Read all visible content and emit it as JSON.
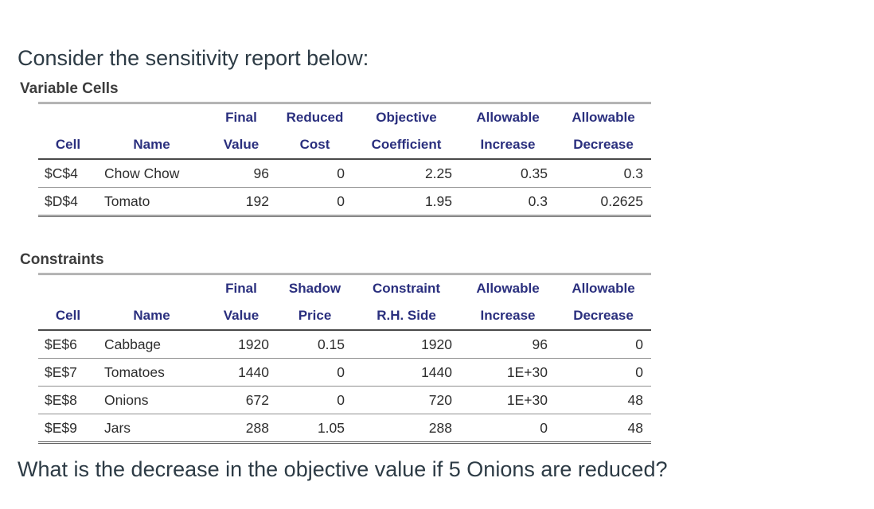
{
  "prompt": {
    "intro": "Consider the sensitivity report below:",
    "question": "What is the decrease in the objective value if 5 Onions are reduced?"
  },
  "colors": {
    "table_header_text": "#2a2f7e",
    "table_body_text": "#2e2e2e",
    "prompt_text": "#2d3b45"
  },
  "variable_cells": {
    "label": "Variable Cells",
    "header_top": {
      "final": "Final",
      "reduced": "Reduced",
      "objective": "Objective",
      "allowable1": "Allowable",
      "allowable2": "Allowable"
    },
    "header_bottom": {
      "cell": "Cell",
      "name": "Name",
      "value": "Value",
      "cost": "Cost",
      "coefficient": "Coefficient",
      "increase": "Increase",
      "decrease": "Decrease"
    },
    "rows": [
      {
        "cell": "$C$4",
        "name": "Chow Chow",
        "final_value": "96",
        "reduced_cost": "0",
        "objective_coefficient": "2.25",
        "allowable_increase": "0.35",
        "allowable_decrease": "0.3"
      },
      {
        "cell": "$D$4",
        "name": "Tomato",
        "final_value": "192",
        "reduced_cost": "0",
        "objective_coefficient": "1.95",
        "allowable_increase": "0.3",
        "allowable_decrease": "0.2625"
      }
    ]
  },
  "constraints": {
    "label": "Constraints",
    "header_top": {
      "final": "Final",
      "shadow": "Shadow",
      "constraint": "Constraint",
      "allowable1": "Allowable",
      "allowable2": "Allowable"
    },
    "header_bottom": {
      "cell": "Cell",
      "name": "Name",
      "value": "Value",
      "price": "Price",
      "rh_side": "R.H. Side",
      "increase": "Increase",
      "decrease": "Decrease"
    },
    "rows": [
      {
        "cell": "$E$6",
        "name": "Cabbage",
        "final_value": "1920",
        "shadow_price": "0.15",
        "rh_side": "1920",
        "allowable_increase": "96",
        "allowable_decrease": "0"
      },
      {
        "cell": "$E$7",
        "name": "Tomatoes",
        "final_value": "1440",
        "shadow_price": "0",
        "rh_side": "1440",
        "allowable_increase": "1E+30",
        "allowable_decrease": "0"
      },
      {
        "cell": "$E$8",
        "name": "Onions",
        "final_value": "672",
        "shadow_price": "0",
        "rh_side": "720",
        "allowable_increase": "1E+30",
        "allowable_decrease": "48"
      },
      {
        "cell": "$E$9",
        "name": "Jars",
        "final_value": "288",
        "shadow_price": "1.05",
        "rh_side": "288",
        "allowable_increase": "0",
        "allowable_decrease": "48"
      }
    ]
  }
}
